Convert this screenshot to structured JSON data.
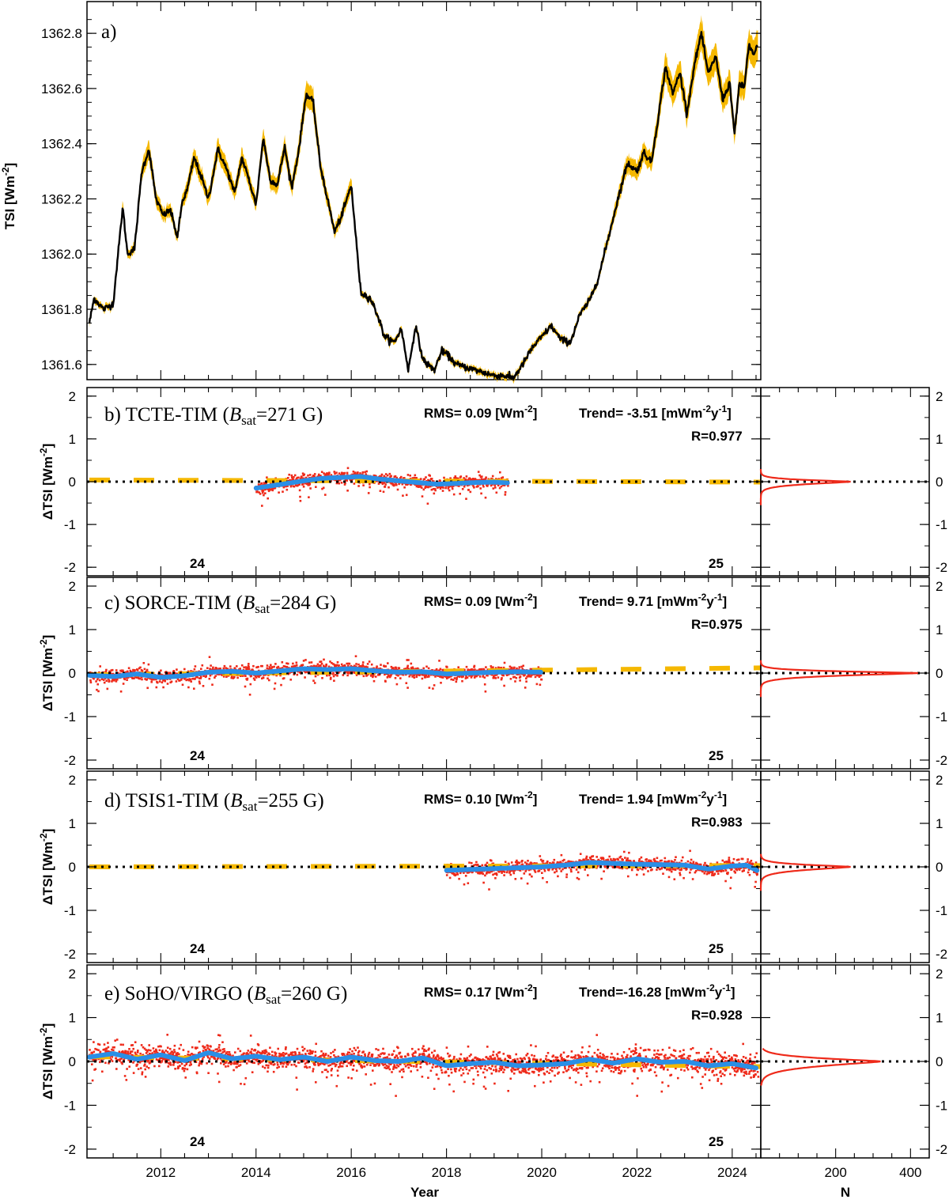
{
  "colors": {
    "black": "#000000",
    "gold": "#f5b800",
    "blue": "#2a8fe6",
    "red": "#ee2a1a"
  },
  "chart_data": [
    {
      "type": "line",
      "panel": "a",
      "title": "a)",
      "ylabel": "TSI [Wm-2]",
      "ylabel_text": "TSI [Wm",
      "ylabel_sup": "-2",
      "ylabel_end": "]",
      "xlim": [
        2010.45,
        2024.6
      ],
      "ylim": [
        1361.545,
        1362.915
      ],
      "yticks": [
        1361.6,
        1361.8,
        1362.0,
        1362.2,
        1362.4,
        1362.6,
        1362.8
      ],
      "ytick_labels": [
        "1361.6",
        "1361.8",
        "1362.0",
        "1362.2",
        "1362.4",
        "1362.6",
        "1362.8"
      ],
      "series": [
        {
          "name": "TSI",
          "color": "#000000",
          "band_color": "#f5b800",
          "x": [
            2010.5,
            2010.6,
            2010.8,
            2011.0,
            2011.2,
            2011.3,
            2011.45,
            2011.6,
            2011.75,
            2011.9,
            2012.05,
            2012.2,
            2012.35,
            2012.45,
            2012.55,
            2012.7,
            2012.85,
            2013.0,
            2013.2,
            2013.4,
            2013.55,
            2013.7,
            2013.85,
            2014.0,
            2014.15,
            2014.3,
            2014.45,
            2014.6,
            2014.75,
            2014.9,
            2015.05,
            2015.2,
            2015.35,
            2015.5,
            2015.65,
            2015.8,
            2016.0,
            2016.2,
            2016.4,
            2016.55,
            2016.7,
            2016.9,
            2017.05,
            2017.2,
            2017.35,
            2017.5,
            2017.6,
            2017.75,
            2017.9,
            2018.05,
            2018.2,
            2018.4,
            2018.6,
            2018.8,
            2019.0,
            2019.2,
            2019.4,
            2019.6,
            2019.8,
            2020.0,
            2020.2,
            2020.4,
            2020.6,
            2020.8,
            2021.0,
            2021.2,
            2021.4,
            2021.6,
            2021.8,
            2022.0,
            2022.15,
            2022.3,
            2022.45,
            2022.6,
            2022.75,
            2022.9,
            2023.05,
            2023.2,
            2023.35,
            2023.5,
            2023.65,
            2023.8,
            2023.95,
            2024.05,
            2024.15,
            2024.25,
            2024.35,
            2024.45,
            2024.55
          ],
          "values": [
            1361.75,
            1361.84,
            1361.8,
            1361.82,
            1362.17,
            1362.0,
            1362.02,
            1362.3,
            1362.38,
            1362.2,
            1362.14,
            1362.16,
            1362.06,
            1362.19,
            1362.23,
            1362.35,
            1362.28,
            1362.2,
            1362.38,
            1362.3,
            1362.22,
            1362.35,
            1362.27,
            1362.18,
            1362.42,
            1362.27,
            1362.25,
            1362.39,
            1362.24,
            1362.38,
            1362.58,
            1362.55,
            1362.32,
            1362.2,
            1362.08,
            1362.14,
            1362.25,
            1361.86,
            1361.84,
            1361.78,
            1361.7,
            1361.68,
            1361.73,
            1361.58,
            1361.74,
            1361.62,
            1361.6,
            1361.58,
            1361.65,
            1361.63,
            1361.6,
            1361.59,
            1361.58,
            1361.57,
            1361.56,
            1361.56,
            1361.55,
            1361.6,
            1361.66,
            1361.7,
            1361.74,
            1361.69,
            1361.68,
            1361.78,
            1361.83,
            1361.92,
            1362.06,
            1362.2,
            1362.33,
            1362.3,
            1362.37,
            1362.33,
            1362.5,
            1362.68,
            1362.58,
            1362.66,
            1362.51,
            1362.68,
            1362.8,
            1362.65,
            1362.72,
            1362.56,
            1362.62,
            1362.43,
            1362.62,
            1362.6,
            1362.76,
            1362.72,
            1362.76
          ]
        }
      ]
    },
    {
      "type": "scatter",
      "panel": "b",
      "title_prefix": "b) TCTE-TIM (",
      "title_b": "B",
      "title_sub": "sat",
      "title_suffix": "=271 G)",
      "rms_label": "RMS= 0.09 [Wm",
      "rms_sup": "-2",
      "rms_end": "]",
      "trend_label": "Trend= -3.51 [mWm",
      "trend_sup1": "-2",
      "trend_mid": "y",
      "trend_sup2": "-1",
      "trend_end": "]",
      "r_label": "R=0.977",
      "cycle_labels": [
        "24",
        "25"
      ],
      "ylabel": "ΔTSI [Wm-2]",
      "ylim": [
        -2.2,
        2.2
      ],
      "yticks": [
        -2,
        -1,
        0,
        1,
        2
      ],
      "ytick_labels": [
        "-2",
        "-1",
        "0",
        "1",
        "2"
      ],
      "trend_line": {
        "x": [
          2010.5,
          2024.6
        ],
        "y": [
          0.04,
          -0.01
        ]
      },
      "blue_line": {
        "x": [
          2014.0,
          2014.3,
          2014.6,
          2015.0,
          2015.4,
          2015.8,
          2016.2,
          2016.6,
          2017.0,
          2017.4,
          2017.8,
          2018.2,
          2018.6,
          2019.0,
          2019.3
        ],
        "y": [
          -0.15,
          -0.1,
          -0.05,
          0.02,
          0.08,
          0.1,
          0.12,
          0.06,
          0.02,
          -0.02,
          -0.06,
          -0.04,
          -0.02,
          -0.01,
          -0.03
        ]
      },
      "scatter_range": [
        2014.0,
        2019.3
      ],
      "scatter_spread": 0.12,
      "hist_xlim": [
        0,
        450
      ],
      "hist_peak": 240,
      "hist_width": 0.1
    },
    {
      "type": "scatter",
      "panel": "c",
      "title_prefix": "c) SORCE-TIM (",
      "title_b": "B",
      "title_sub": "sat",
      "title_suffix": "=284 G)",
      "rms_label": "RMS= 0.09 [Wm",
      "rms_sup": "-2",
      "rms_end": "]",
      "trend_label": "Trend=  9.71 [mWm",
      "trend_sup1": "-2",
      "trend_mid": "y",
      "trend_sup2": "-1",
      "trend_end": "]",
      "r_label": "R=0.975",
      "cycle_labels": [
        "24",
        "25"
      ],
      "ylabel": "ΔTSI [Wm-2]",
      "ylim": [
        -2.2,
        2.2
      ],
      "yticks": [
        -2,
        -1,
        0,
        1,
        2
      ],
      "ytick_labels": [
        "-2",
        "-1",
        "0",
        "1",
        "2"
      ],
      "trend_line": {
        "x": [
          2010.5,
          2024.6
        ],
        "y": [
          -0.04,
          0.12
        ]
      },
      "blue_line": {
        "x": [
          2010.5,
          2011.0,
          2011.5,
          2012.0,
          2012.5,
          2013.0,
          2013.5,
          2014.0,
          2014.5,
          2015.0,
          2015.5,
          2016.0,
          2016.5,
          2017.0,
          2017.5,
          2018.0,
          2018.5,
          2019.0,
          2019.5,
          2020.0
        ],
        "y": [
          -0.05,
          -0.08,
          -0.02,
          -0.1,
          -0.06,
          0.02,
          0.04,
          0.0,
          0.05,
          0.1,
          0.08,
          0.1,
          0.05,
          0.02,
          0.03,
          -0.02,
          0.0,
          0.02,
          0.03,
          0.02
        ]
      },
      "scatter_range": [
        2010.5,
        2020.0
      ],
      "scatter_spread": 0.12,
      "hist_xlim": [
        0,
        450
      ],
      "hist_peak": 420,
      "hist_width": 0.1
    },
    {
      "type": "scatter",
      "panel": "d",
      "title_prefix": "d) TSIS1-TIM (",
      "title_b": "B",
      "title_sub": "sat",
      "title_suffix": "=255 G)",
      "rms_label": "RMS= 0.10 [Wm",
      "rms_sup": "-2",
      "rms_end": "]",
      "trend_label": "Trend=  1.94 [mWm",
      "trend_sup1": "-2",
      "trend_mid": "y",
      "trend_sup2": "-1",
      "trend_end": "]",
      "r_label": "R=0.983",
      "cycle_labels": [
        "24",
        "25"
      ],
      "ylabel": "ΔTSI [Wm-2]",
      "ylim": [
        -2.2,
        2.2
      ],
      "yticks": [
        -2,
        -1,
        0,
        1,
        2
      ],
      "ytick_labels": [
        "-2",
        "-1",
        "0",
        "1",
        "2"
      ],
      "trend_line": {
        "x": [
          2010.5,
          2024.6
        ],
        "y": [
          0.0,
          0.03
        ]
      },
      "blue_line": {
        "x": [
          2018.0,
          2018.5,
          2019.0,
          2019.5,
          2020.0,
          2020.5,
          2021.0,
          2021.5,
          2022.0,
          2022.5,
          2023.0,
          2023.5,
          2024.0,
          2024.3,
          2024.55
        ],
        "y": [
          -0.08,
          -0.06,
          -0.04,
          -0.02,
          0.0,
          0.04,
          0.1,
          0.08,
          0.06,
          0.05,
          0.04,
          -0.05,
          0.02,
          0.04,
          -0.1
        ]
      },
      "scatter_range": [
        2018.0,
        2024.55
      ],
      "scatter_spread": 0.12,
      "hist_xlim": [
        0,
        450
      ],
      "hist_peak": 240,
      "hist_width": 0.12
    },
    {
      "type": "scatter",
      "panel": "e",
      "title_prefix": "e) SoHO/VIRGO (",
      "title_b": "B",
      "title_sub": "sat",
      "title_suffix": "=260 G)",
      "rms_label": "RMS= 0.17 [Wm",
      "rms_sup": "-2",
      "rms_end": "]",
      "trend_label": "Trend=-16.28 [mWm",
      "trend_sup1": "-2",
      "trend_mid": "y",
      "trend_sup2": "-1",
      "trend_end": "]",
      "r_label": "R=0.928",
      "cycle_labels": [
        "24",
        "25"
      ],
      "ylabel": "ΔTSI [Wm-2]",
      "ylim": [
        -2.2,
        2.2
      ],
      "yticks": [
        -2,
        -1,
        0,
        1,
        2
      ],
      "ytick_labels": [
        "-2",
        "-1",
        "0",
        "1",
        "2"
      ],
      "trend_line": {
        "x": [
          2010.5,
          2024.6
        ],
        "y": [
          0.11,
          -0.12
        ]
      },
      "blue_line": {
        "x": [
          2010.5,
          2011.0,
          2011.5,
          2012.0,
          2012.5,
          2013.0,
          2013.5,
          2014.0,
          2014.5,
          2015.0,
          2015.5,
          2016.0,
          2016.5,
          2017.0,
          2017.5,
          2018.0,
          2018.5,
          2019.0,
          2019.5,
          2020.0,
          2020.5,
          2021.0,
          2021.5,
          2022.0,
          2022.5,
          2023.0,
          2023.5,
          2024.0,
          2024.5
        ],
        "y": [
          0.1,
          0.18,
          0.05,
          0.15,
          0.02,
          0.2,
          0.06,
          0.12,
          0.04,
          0.1,
          0.0,
          0.1,
          0.02,
          0.0,
          0.08,
          -0.1,
          -0.05,
          -0.02,
          -0.1,
          -0.08,
          -0.05,
          0.05,
          -0.04,
          0.06,
          -0.02,
          0.0,
          -0.1,
          -0.05,
          -0.15
        ]
      },
      "scatter_range": [
        2010.5,
        2024.55
      ],
      "scatter_spread": 0.2,
      "hist_xlim": [
        0,
        450
      ],
      "hist_peak": 320,
      "hist_width": 0.18
    }
  ],
  "xaxis": {
    "label": "Year",
    "xlim": [
      2010.45,
      2024.6
    ],
    "ticks": [
      2012,
      2014,
      2016,
      2018,
      2020,
      2022,
      2024
    ],
    "tick_labels": [
      "2012",
      "2014",
      "2016",
      "2018",
      "2020",
      "2022",
      "2024"
    ],
    "hist_label": "N",
    "hist_ticks": [
      200,
      400
    ],
    "hist_tick_labels": [
      "200",
      "400"
    ]
  }
}
